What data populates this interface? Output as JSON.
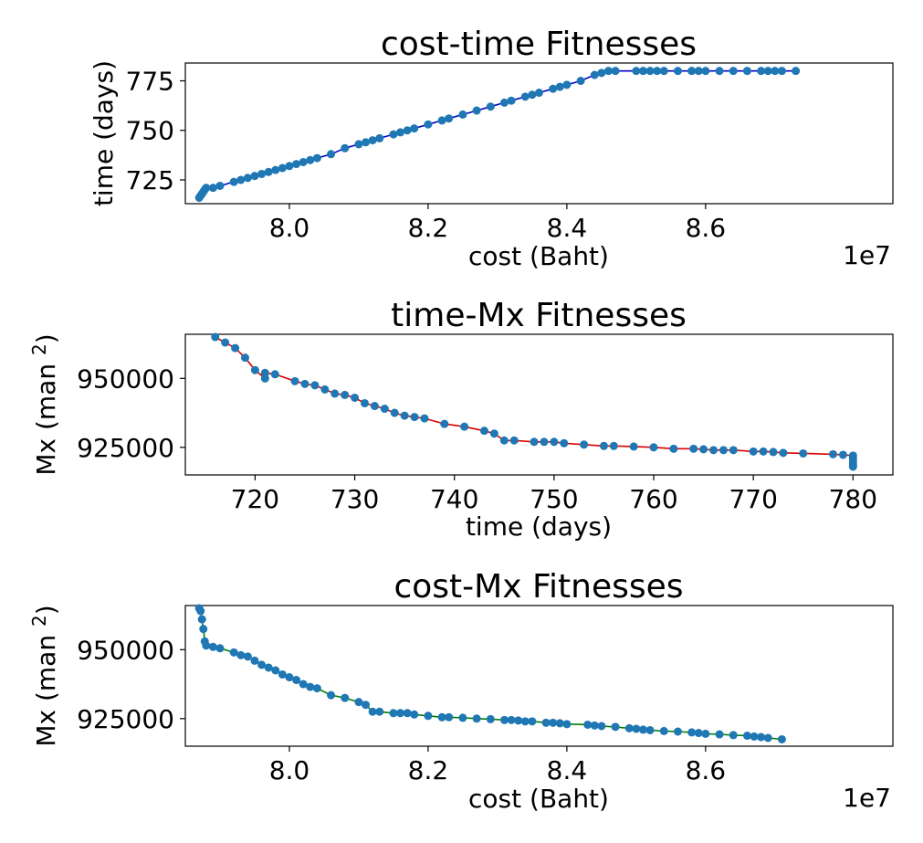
{
  "chart_data": [
    {
      "type": "line",
      "title": "cost-time Fitnesses",
      "xlabel": "cost (Baht)",
      "ylabel": "time (days)",
      "x_offset_label": "1e7",
      "xlim": [
        7.85,
        8.87
      ],
      "ylim": [
        713,
        784
      ],
      "xticks": [
        8.0,
        8.2,
        8.4,
        8.6
      ],
      "xtick_labels": [
        "8.0",
        "8.2",
        "8.4",
        "8.6"
      ],
      "yticks": [
        725,
        750,
        775
      ],
      "ytick_labels": [
        "725",
        "750",
        "775"
      ],
      "line_color": "#0000cc",
      "marker_color": "#1f77b4",
      "series": [
        {
          "x": [
            7.87,
            7.872,
            7.874,
            7.876,
            7.878,
            7.88,
            7.89,
            7.9,
            7.92,
            7.93,
            7.94,
            7.95,
            7.96,
            7.97,
            7.98,
            7.99,
            8.0,
            8.01,
            8.02,
            8.03,
            8.04,
            8.06,
            8.08,
            8.1,
            8.11,
            8.12,
            8.13,
            8.15,
            8.16,
            8.17,
            8.18,
            8.2,
            8.22,
            8.23,
            8.25,
            8.27,
            8.29,
            8.31,
            8.32,
            8.34,
            8.35,
            8.36,
            8.38,
            8.39,
            8.4,
            8.42,
            8.44,
            8.45,
            8.46,
            8.47,
            8.5,
            8.51,
            8.52,
            8.53,
            8.54,
            8.56,
            8.58,
            8.59,
            8.6,
            8.62,
            8.64,
            8.66,
            8.68,
            8.69,
            8.7,
            8.71,
            8.73
          ],
          "y": [
            716,
            717,
            718,
            719,
            720,
            721,
            721,
            722,
            724,
            725,
            726,
            727,
            728,
            729,
            730,
            731,
            732,
            733,
            734,
            735,
            736,
            738,
            741,
            743,
            744,
            745,
            746,
            748,
            749,
            750,
            751,
            753,
            755,
            756,
            758,
            760,
            762,
            764,
            765,
            767,
            768,
            769,
            771,
            772,
            773,
            775,
            778,
            779,
            780,
            780,
            780,
            780,
            780,
            780,
            780,
            780,
            780,
            780,
            780,
            780,
            780,
            780,
            780,
            780,
            780,
            780,
            780
          ]
        }
      ]
    },
    {
      "type": "line",
      "title": "time-Mx Fitnesses",
      "xlabel": "time (days)",
      "ylabel": "Mx (man 2)",
      "xlim": [
        713,
        784
      ],
      "ylim": [
        915000,
        966000
      ],
      "xticks": [
        720,
        730,
        740,
        750,
        760,
        770,
        780
      ],
      "xtick_labels": [
        "720",
        "730",
        "740",
        "750",
        "760",
        "770",
        "780"
      ],
      "yticks": [
        925000,
        950000
      ],
      "ytick_labels": [
        "925000",
        "950000"
      ],
      "line_color": "#dd0000",
      "marker_color": "#1f77b4",
      "series": [
        {
          "x": [
            716,
            717,
            718,
            719,
            720,
            721,
            721,
            722,
            724,
            725,
            726,
            727,
            728,
            729,
            730,
            731,
            732,
            733,
            734,
            735,
            736,
            737,
            739,
            741,
            743,
            744,
            745,
            746,
            748,
            749,
            750,
            751,
            753,
            755,
            756,
            758,
            760,
            762,
            764,
            765,
            766,
            767,
            768,
            770,
            771,
            772,
            773,
            775,
            778,
            779,
            780,
            780,
            780,
            780,
            780
          ],
          "y": [
            965000,
            963000,
            961000,
            957500,
            953000,
            950000,
            952000,
            951500,
            949000,
            948000,
            947500,
            946000,
            944500,
            944000,
            943000,
            941000,
            940000,
            939000,
            937500,
            936500,
            936000,
            935500,
            933500,
            932500,
            931000,
            930000,
            927500,
            927500,
            927000,
            927000,
            927000,
            926500,
            926000,
            925500,
            925500,
            925300,
            925000,
            924500,
            924500,
            924300,
            924000,
            924000,
            924000,
            923500,
            923500,
            923300,
            923000,
            922800,
            922500,
            922300,
            922000,
            921000,
            920000,
            919000,
            918000
          ]
        }
      ]
    },
    {
      "type": "line",
      "title": "cost-Mx Fitnesses",
      "xlabel": "cost (Baht)",
      "ylabel": "Mx (man 2)",
      "x_offset_label": "1e7",
      "xlim": [
        7.85,
        8.87
      ],
      "ylim": [
        915000,
        966000
      ],
      "xticks": [
        8.0,
        8.2,
        8.4,
        8.6
      ],
      "xtick_labels": [
        "8.0",
        "8.2",
        "8.4",
        "8.6"
      ],
      "yticks": [
        925000,
        950000
      ],
      "ytick_labels": [
        "925000",
        "950000"
      ],
      "line_color": "#008000",
      "marker_color": "#1f77b4",
      "series": [
        {
          "x": [
            7.87,
            7.872,
            7.874,
            7.876,
            7.878,
            7.88,
            7.89,
            7.9,
            7.92,
            7.93,
            7.94,
            7.95,
            7.96,
            7.97,
            7.98,
            7.99,
            8.0,
            8.01,
            8.02,
            8.03,
            8.04,
            8.06,
            8.08,
            8.1,
            8.11,
            8.12,
            8.13,
            8.15,
            8.16,
            8.17,
            8.18,
            8.2,
            8.22,
            8.23,
            8.25,
            8.27,
            8.29,
            8.31,
            8.32,
            8.33,
            8.34,
            8.35,
            8.37,
            8.38,
            8.39,
            8.4,
            8.43,
            8.44,
            8.45,
            8.47,
            8.49,
            8.5,
            8.51,
            8.52,
            8.54,
            8.56,
            8.58,
            8.59,
            8.6,
            8.62,
            8.64,
            8.66,
            8.67,
            8.68,
            8.69,
            8.71
          ],
          "y": [
            965000,
            964000,
            961000,
            957500,
            953000,
            951500,
            951000,
            950500,
            949000,
            948000,
            947500,
            946000,
            944500,
            943500,
            942500,
            941000,
            940000,
            939000,
            937500,
            936500,
            936000,
            933500,
            932500,
            931000,
            930000,
            927500,
            927500,
            927000,
            927000,
            927000,
            926500,
            926000,
            925500,
            925500,
            925300,
            925000,
            924800,
            924500,
            924500,
            924300,
            924000,
            924000,
            923500,
            923500,
            923300,
            923000,
            922800,
            922500,
            922300,
            922000,
            921500,
            921300,
            921000,
            920800,
            920500,
            920300,
            920000,
            919800,
            919500,
            919300,
            919000,
            918800,
            918500,
            918300,
            918000,
            917500
          ]
        }
      ]
    }
  ]
}
